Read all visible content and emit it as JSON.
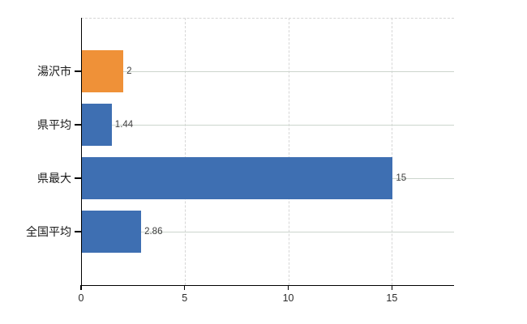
{
  "chart_data": {
    "type": "bar",
    "orientation": "horizontal",
    "title": "",
    "xlabel": "",
    "ylabel": "",
    "categories": [
      "湯沢市",
      "県平均",
      "県最大",
      "全国平均"
    ],
    "values": [
      2,
      1.44,
      15,
      2.86
    ],
    "value_labels": [
      "2",
      "1.44",
      "15",
      "2.86"
    ],
    "series": [
      {
        "name": "value",
        "values": [
          2,
          1.44,
          15,
          2.86
        ]
      }
    ],
    "bar_colors": [
      "#ef9138",
      "#3e6fb2",
      "#3e6fb2",
      "#3e6fb2"
    ],
    "x_ticks": [
      0,
      5,
      10,
      15
    ],
    "x_tick_labels": [
      "0",
      "5",
      "10",
      "15"
    ],
    "xlim": [
      0,
      18
    ],
    "grid": "vertical dashed gridlines at ticks; solid pale horizontal line at each category center; dashed top border",
    "legend": "none"
  },
  "colors": {
    "background": "#ffffff",
    "axis": "#000000",
    "grid_vertical": "#d6d6d6",
    "grid_horizontal": "#ccd5cd",
    "top_border": "#d6d6d6",
    "bar_blue": "#3e6fb2",
    "bar_orange": "#ef9138",
    "value_label_text": "#3d3d3d",
    "tick_label_text": "#2b2b2b",
    "category_label_text": "#1a1a1a"
  }
}
